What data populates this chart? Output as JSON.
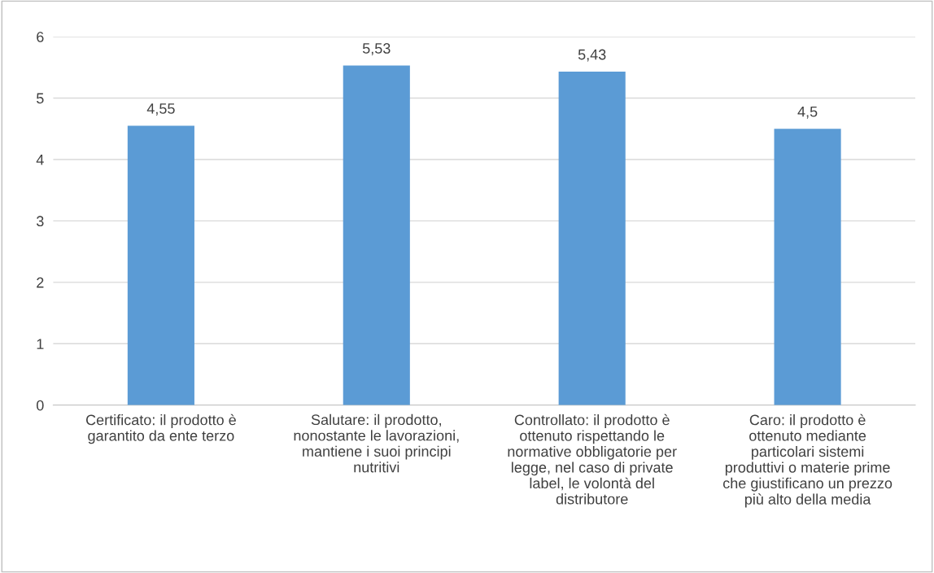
{
  "chart_data": {
    "type": "bar",
    "categories": [
      "Certificato: il prodotto è\ngarantito da ente terzo",
      "Salutare: il prodotto,\nnonostante le lavorazioni,\nmantiene i suoi principi\nnutritivi",
      "Controllato: il prodotto è\nottenuto rispettando le\nnormative obbligatorie per\nlegge, nel caso di private\nlabel, le volontà del\ndistributore",
      "Caro: il prodotto è\nottenuto mediante\nparticolari sistemi\nproduttivi o materie prime\nche giustificano un prezzo\npiù alto della media"
    ],
    "values": [
      4.55,
      5.53,
      5.43,
      4.5
    ],
    "value_labels": [
      "4,55",
      "5,53",
      "5,43",
      "4,5"
    ],
    "color": "#5b9bd5",
    "ylim": [
      0,
      6
    ],
    "yticks": [
      0,
      1,
      2,
      3,
      4,
      5,
      6
    ],
    "grid": "y"
  }
}
